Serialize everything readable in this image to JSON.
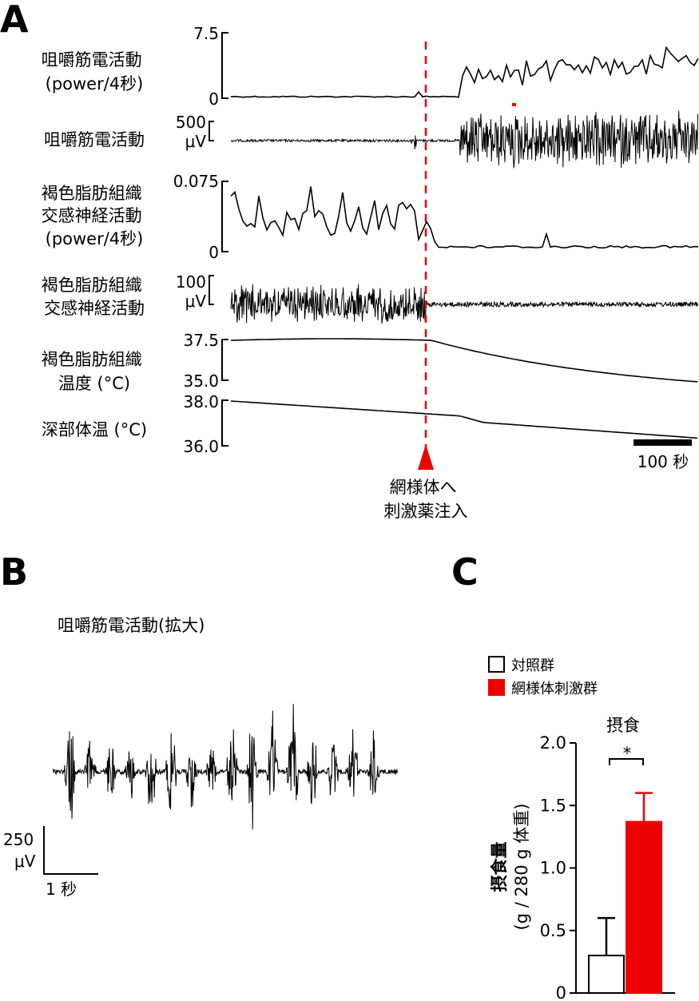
{
  "panels": {
    "a": "A",
    "b": "B",
    "c": "C"
  },
  "colors": {
    "trace": "#000000",
    "accent": "#ee0000",
    "control_fill": "#ffffff"
  },
  "panel_a": {
    "traces": [
      {
        "label_lines": [
          "咀嚼筋電活動",
          "(power/4秒)"
        ],
        "scale_top": "7.5",
        "scale_bottom": "0"
      },
      {
        "label_lines": [
          "咀嚼筋電活動"
        ],
        "scale_top": "500",
        "scale_unit": "μV"
      },
      {
        "label_lines": [
          "褐色脂肪組織",
          "交感神経活動",
          "(power/4秒)"
        ],
        "scale_top": "0.075",
        "scale_bottom": "0"
      },
      {
        "label_lines": [
          "褐色脂肪組織",
          "交感神経活動"
        ],
        "scale_top": "100",
        "scale_unit": "μV"
      },
      {
        "label_lines": [
          "褐色脂肪組織",
          "温度 (°C)"
        ],
        "scale_top": "37.5",
        "scale_bottom": "35.0"
      },
      {
        "label_lines": [
          "深部体温 (°C)"
        ],
        "scale_top": "38.0",
        "scale_bottom": "36.0"
      }
    ],
    "injection_label_lines": [
      "網様体へ",
      "刺激薬注入"
    ],
    "time_scale": "100 秒"
  },
  "panel_b": {
    "title": "咀嚼筋電活動(拡大)",
    "scale_value": "250",
    "scale_unit": "μV",
    "time_scale": "1 秒",
    "burst_count": 16
  },
  "chart_data": {
    "type": "bar",
    "title": "摂食",
    "ylabel": "摂食量",
    "ylabel_unit": "(g / 280 g 体重)",
    "ylim": [
      0,
      2.0
    ],
    "yticks": [
      "0",
      "0.5",
      "1.0",
      "1.5",
      "2.0"
    ],
    "categories": [
      "対照群",
      "網様体刺激群"
    ],
    "series": [
      {
        "name": "対照群",
        "value": 0.3,
        "error": 0.3,
        "color": "#ffffff"
      },
      {
        "name": "網様体刺激群",
        "value": 1.37,
        "error": 0.23,
        "color": "#ee0000"
      }
    ],
    "significance": "*",
    "legend_position": "top-left"
  }
}
